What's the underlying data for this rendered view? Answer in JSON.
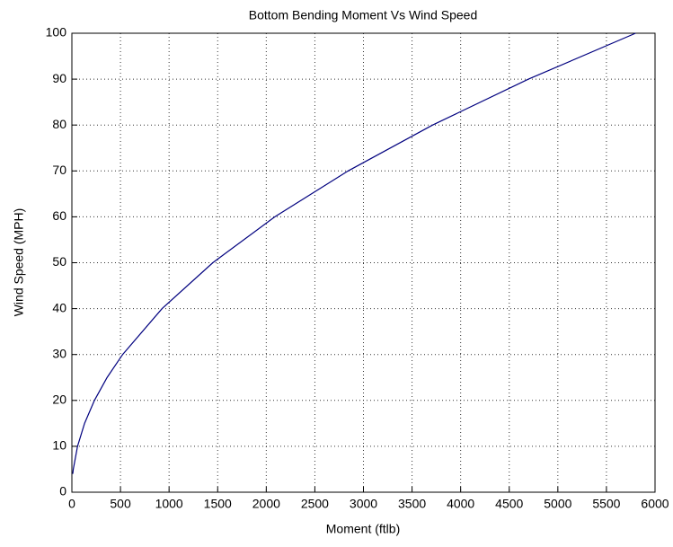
{
  "chart_data": {
    "type": "line",
    "title": "Bottom Bending Moment Vs Wind Speed",
    "xlabel": "Moment (ftlb)",
    "ylabel": "Wind Speed (MPH)",
    "x": [
      9,
      14.5,
      58,
      130.5,
      232,
      362.5,
      522,
      928,
      1450,
      2088,
      2842,
      3712,
      4698,
      5800
    ],
    "series": [
      {
        "name": "Wind Speed",
        "color": "#00007f",
        "values": [
          4,
          5,
          10,
          15,
          20,
          25,
          30,
          40,
          50,
          60,
          70,
          80,
          90,
          100
        ]
      }
    ],
    "xlim": [
      0,
      6000
    ],
    "xticks": [
      0,
      500,
      1000,
      1500,
      2000,
      2500,
      3000,
      3500,
      4000,
      4500,
      5000,
      5500,
      6000
    ],
    "ylim": [
      0,
      100
    ],
    "yticks": [
      0,
      10,
      20,
      30,
      40,
      50,
      60,
      70,
      80,
      90,
      100
    ],
    "grid": true
  }
}
